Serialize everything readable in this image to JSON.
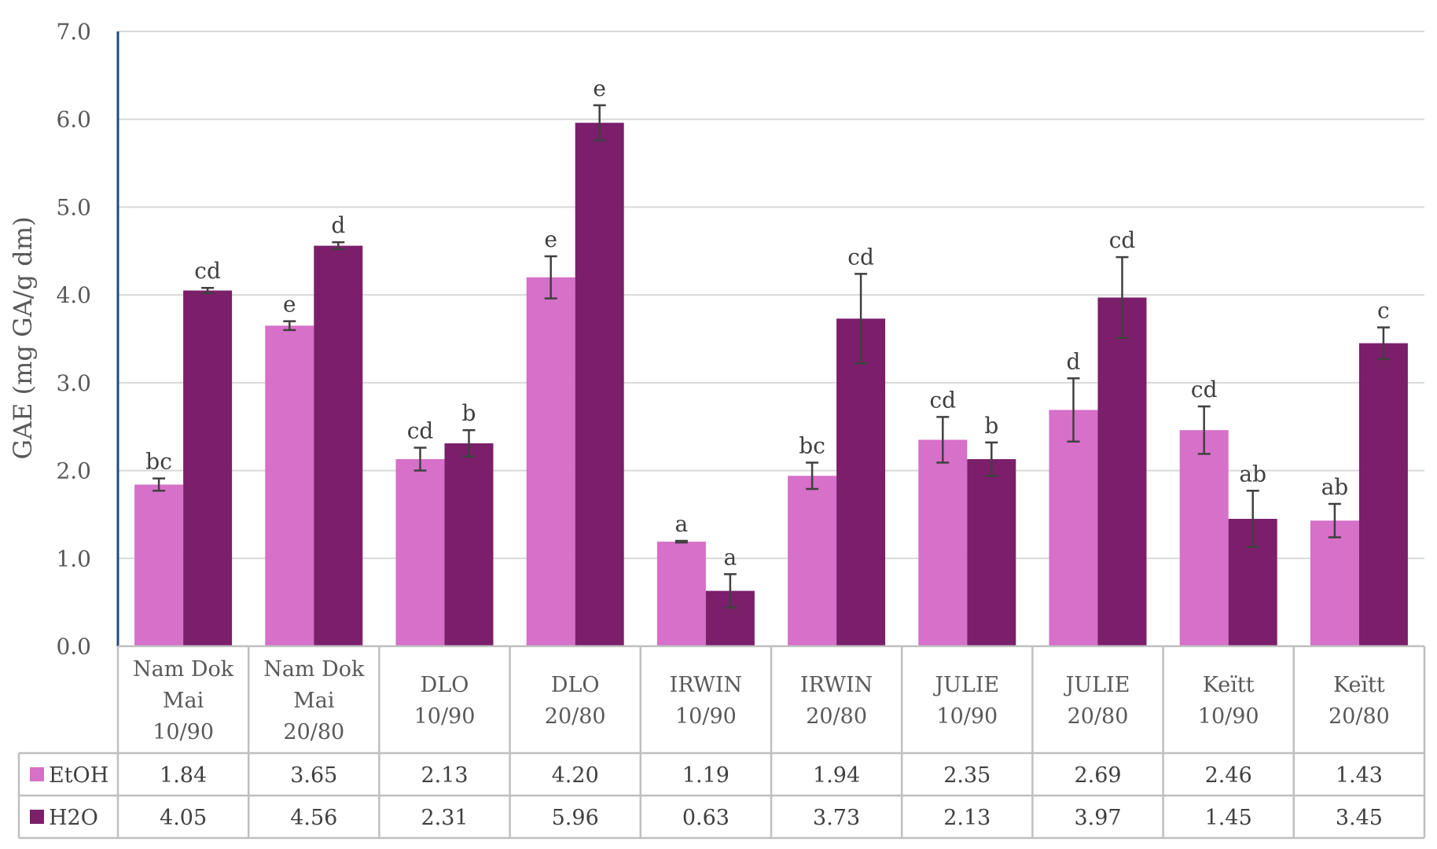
{
  "chart_data": {
    "type": "bar",
    "ylabel": "GAE (mg GA/g dm)",
    "ylim": [
      0,
      7
    ],
    "ytick_labels": [
      "0.0",
      "1.0",
      "2.0",
      "3.0",
      "4.0",
      "5.0",
      "6.0",
      "7.0"
    ],
    "grid": true,
    "legend": "data-table",
    "categories": [
      [
        "Nam Dok",
        "Mai",
        "10/90"
      ],
      [
        "Nam Dok",
        "Mai",
        "20/80"
      ],
      [
        "DLO",
        "10/90"
      ],
      [
        "DLO",
        "20/80"
      ],
      [
        "IRWIN",
        "10/90"
      ],
      [
        "IRWIN",
        "20/80"
      ],
      [
        "JULIE",
        "10/90"
      ],
      [
        "JULIE",
        "20/80"
      ],
      [
        "Keïtt",
        "10/90"
      ],
      [
        "Keïtt",
        "20/80"
      ]
    ],
    "series": [
      {
        "name": "EtOH",
        "color": "#d670c8",
        "values": [
          1.84,
          3.65,
          2.13,
          4.2,
          1.19,
          1.94,
          2.35,
          2.69,
          2.46,
          1.43
        ],
        "value_labels": [
          "1.84",
          "3.65",
          "2.13",
          "4.20",
          "1.19",
          "1.94",
          "2.35",
          "2.69",
          "2.46",
          "1.43"
        ],
        "errors": [
          0.07,
          0.05,
          0.13,
          0.24,
          0.01,
          0.15,
          0.26,
          0.36,
          0.27,
          0.19
        ],
        "significance": [
          "bc",
          "e",
          "cd",
          "e",
          "a",
          "bc",
          "cd",
          "d",
          "cd",
          "ab"
        ]
      },
      {
        "name": "H2O",
        "color": "#7b1f6a",
        "values": [
          4.05,
          4.56,
          2.31,
          5.96,
          0.63,
          3.73,
          2.13,
          3.97,
          1.45,
          3.45
        ],
        "value_labels": [
          "4.05",
          "4.56",
          "2.31",
          "5.96",
          "0.63",
          "3.73",
          "2.13",
          "3.97",
          "1.45",
          "3.45"
        ],
        "errors": [
          0.03,
          0.04,
          0.15,
          0.2,
          0.19,
          0.51,
          0.19,
          0.46,
          0.32,
          0.18
        ],
        "significance": [
          "cd",
          "d",
          "b",
          "e",
          "a",
          "cd",
          "b",
          "cd",
          "ab",
          "c"
        ]
      }
    ]
  },
  "colors": {
    "gridline": "#d9d9d9",
    "y_axis_line": "#1f4e79",
    "error_bar": "#404040",
    "table_border": "#bfbfbf"
  }
}
